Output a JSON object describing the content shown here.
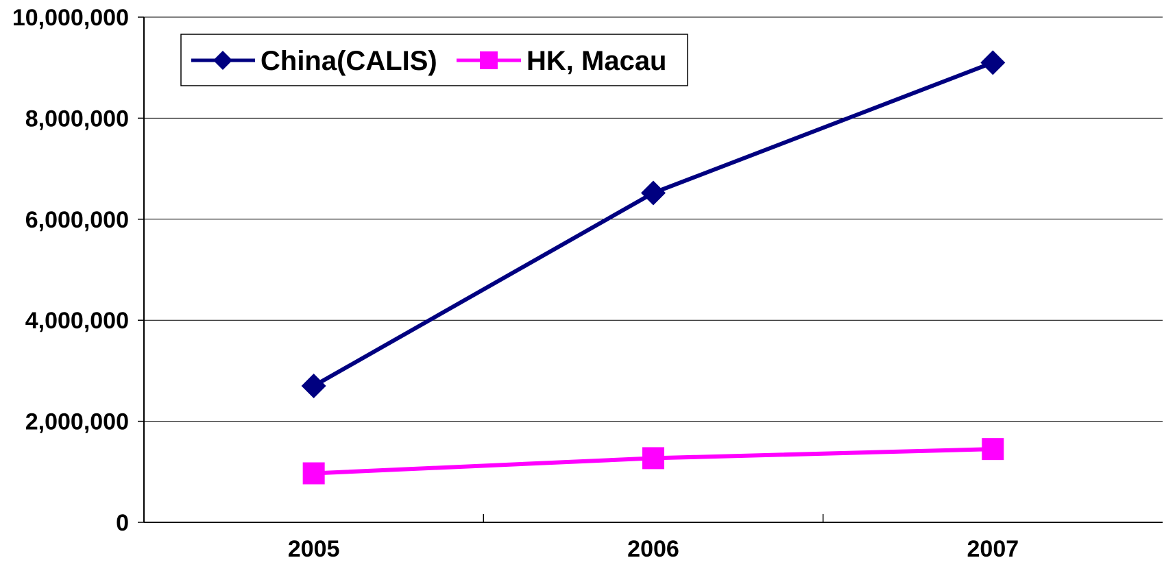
{
  "chart_data": {
    "type": "line",
    "title": "",
    "xlabel": "",
    "ylabel": "",
    "categories": [
      "2005",
      "2006",
      "2007"
    ],
    "ylim": [
      0,
      10000000
    ],
    "yticks": [
      0,
      2000000,
      4000000,
      6000000,
      8000000,
      10000000
    ],
    "ytick_labels": [
      "0",
      "2,000,000",
      "4,000,000",
      "6,000,000",
      "8,000,000",
      "10,000,000"
    ],
    "grid": "horizontal",
    "legend_position": "top-left",
    "series": [
      {
        "name": "China(CALIS)",
        "values": [
          2700000,
          6520000,
          9100000
        ],
        "color": "#000080",
        "marker": "diamond"
      },
      {
        "name": "HK, Macau",
        "values": [
          970000,
          1270000,
          1450000
        ],
        "color": "#FF00FF",
        "marker": "square"
      }
    ]
  }
}
